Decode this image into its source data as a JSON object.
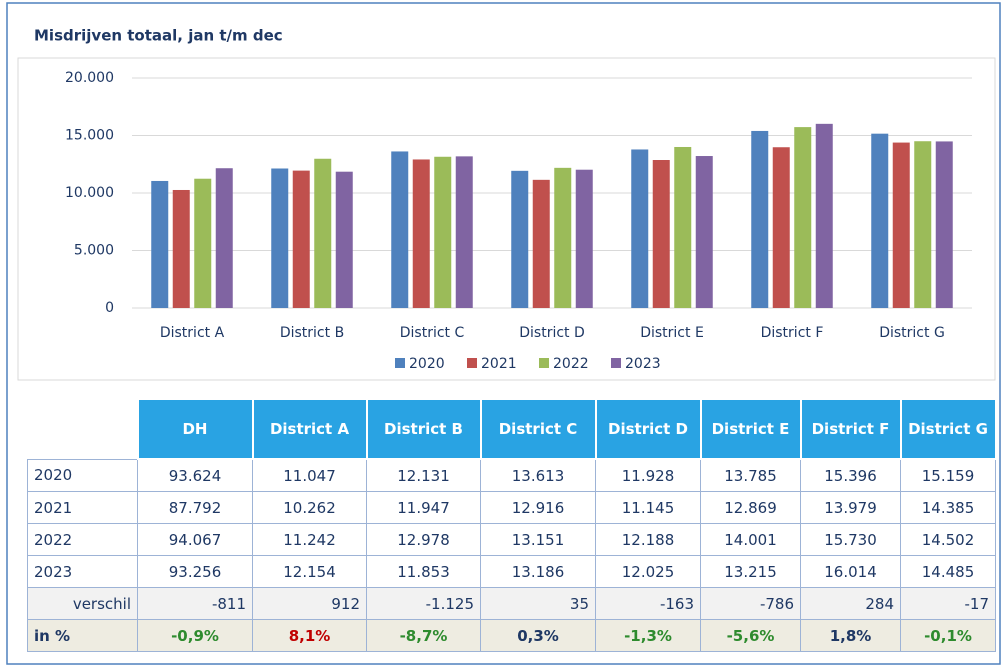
{
  "chart_data": {
    "type": "bar",
    "title": "Misdrijven totaal, jan t/m dec",
    "categories": [
      "District A",
      "District B",
      "District C",
      "District D",
      "District E",
      "District F",
      "District G"
    ],
    "series": [
      {
        "name": "2020",
        "color": "#4f81bd",
        "values": [
          11047,
          12131,
          13613,
          11928,
          13785,
          15396,
          15159
        ]
      },
      {
        "name": "2021",
        "color": "#c0504d",
        "values": [
          10262,
          11947,
          12916,
          11145,
          12869,
          13979,
          14385
        ]
      },
      {
        "name": "2022",
        "color": "#9bbb59",
        "values": [
          11242,
          12978,
          13151,
          12188,
          14001,
          15730,
          14502
        ]
      },
      {
        "name": "2023",
        "color": "#8064a2",
        "values": [
          12154,
          11853,
          13186,
          12025,
          13215,
          16014,
          14485
        ]
      }
    ],
    "ylim": [
      0,
      20000
    ],
    "yticks": [
      0,
      {
        "value": 5000,
        "label": "5.000"
      },
      {
        "value": 10000,
        "label": "10.000"
      },
      {
        "value": 15000,
        "label": "15.000"
      },
      {
        "value": 20000,
        "label": "20.000"
      }
    ],
    "grid": true,
    "legend": "bottom"
  },
  "table": {
    "columns": [
      "DH",
      "District A",
      "District B",
      "District C",
      "District D",
      "District E",
      "District F",
      "District G"
    ],
    "rows": [
      {
        "label": "2020",
        "cells": [
          "93.624",
          "11.047",
          "12.131",
          "13.613",
          "11.928",
          "13.785",
          "15.396",
          "15.159"
        ]
      },
      {
        "label": "2021",
        "cells": [
          "87.792",
          "10.262",
          "11.947",
          "12.916",
          "11.145",
          "12.869",
          "13.979",
          "14.385"
        ]
      },
      {
        "label": "2022",
        "cells": [
          "94.067",
          "11.242",
          "12.978",
          "13.151",
          "12.188",
          "14.001",
          "15.730",
          "14.502"
        ]
      },
      {
        "label": "2023",
        "cells": [
          "93.256",
          "12.154",
          "11.853",
          "13.186",
          "12.025",
          "13.215",
          "16.014",
          "14.485"
        ]
      },
      {
        "label": "verschil",
        "cells": [
          "-811",
          "912",
          "-1.125",
          "35",
          "-163",
          "-786",
          "284",
          "-17"
        ]
      },
      {
        "label": "in %",
        "cells": [
          "-0,9%",
          "8,1%",
          "-8,7%",
          "0,3%",
          "-1,3%",
          "-5,6%",
          "1,8%",
          "-0,1%"
        ],
        "colors": [
          "#2e8b2e",
          "#c00000",
          "#2e8b2e",
          "#1f3864",
          "#2e8b2e",
          "#2e8b2e",
          "#1f3864",
          "#2e8b2e"
        ]
      }
    ]
  }
}
